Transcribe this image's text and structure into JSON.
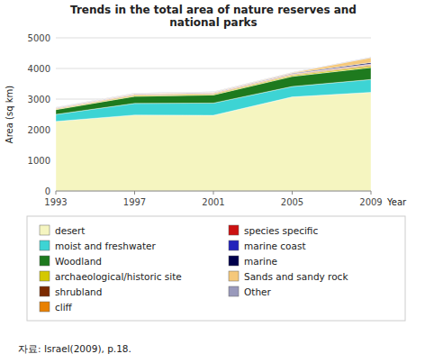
{
  "chart_data": {
    "type": "area",
    "stacked": true,
    "title": "Trends in the total area of nature reserves and\nnational parks",
    "x_label": "Year",
    "y_label": "Area (sq km)",
    "x": [
      1993,
      1997,
      2001,
      2005,
      2009
    ],
    "xlim": [
      1993,
      2009
    ],
    "xticks": [
      1993,
      1997,
      2001,
      2005,
      2009
    ],
    "ylim": [
      0,
      5000
    ],
    "yticks": [
      0,
      1000,
      2000,
      3000,
      4000,
      5000
    ],
    "grid": true,
    "legend": "bottom",
    "series": [
      {
        "name": "desert",
        "color": "#f5f5c0",
        "values": [
          2270,
          2480,
          2470,
          3070,
          3220
        ]
      },
      {
        "name": "moist and freshwater",
        "color": "#3dd4d4",
        "values": [
          230,
          380,
          400,
          340,
          420
        ]
      },
      {
        "name": "Woodland",
        "color": "#1e7a1e",
        "values": [
          155,
          230,
          265,
          330,
          390
        ]
      },
      {
        "name": "archaeological/historic site",
        "color": "#d4c800",
        "values": [
          20,
          28,
          28,
          36,
          50
        ]
      },
      {
        "name": "shrubland",
        "color": "#7B2A00",
        "values": [
          12,
          16,
          16,
          18,
          25
        ]
      },
      {
        "name": "cliff",
        "color": "#E88000",
        "values": [
          14,
          18,
          18,
          20,
          25
        ]
      },
      {
        "name": "species specific",
        "color": "#cc1111",
        "values": [
          5,
          7,
          7,
          9,
          12
        ]
      },
      {
        "name": "marine coast",
        "color": "#2222bb",
        "values": [
          5,
          7,
          7,
          9,
          12
        ]
      },
      {
        "name": "marine",
        "color": "#00004B",
        "values": [
          8,
          10,
          10,
          14,
          40
        ]
      },
      {
        "name": "Sands and sandy rock",
        "color": "#f5c87a",
        "values": [
          10,
          12,
          12,
          18,
          160
        ]
      },
      {
        "name": "Other",
        "color": "#9999bb",
        "values": [
          5,
          7,
          7,
          9,
          12
        ]
      }
    ],
    "annotations": [
      "자료: Israel(2009), p.18."
    ]
  }
}
